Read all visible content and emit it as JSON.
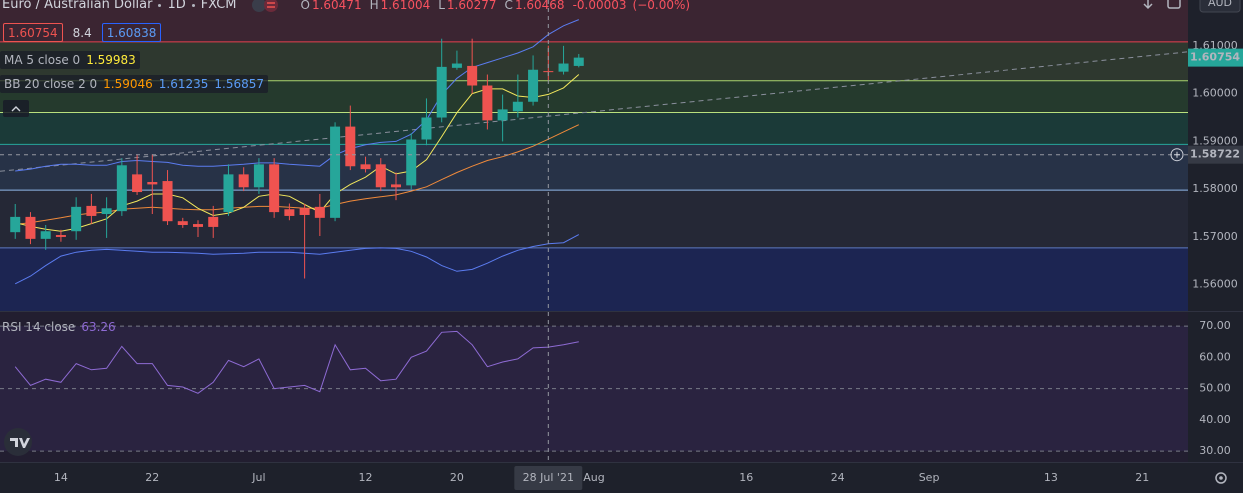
{
  "header": {
    "symbol": "Euro / Australian Dollar",
    "interval": "1D",
    "exchange": "FXCM",
    "ohlc_labels": [
      "O",
      "H",
      "L",
      "C"
    ],
    "change": -3e-05,
    "change_percent": {
      "value": 0,
      "label": "(−0.00%)"
    },
    "quote": {
      "bid": 1.60754,
      "spread": 8.4,
      "ask": 1.60838
    },
    "currency": "AUD"
  },
  "chart_data": [
    {
      "type": "candlestick",
      "up_color": "#26a69a",
      "down_color": "#ef5350",
      "x": [
        "2021-06-09",
        "2021-06-10",
        "2021-06-11",
        "2021-06-14",
        "2021-06-15",
        "2021-06-16",
        "2021-06-17",
        "2021-06-18",
        "2021-06-21",
        "2021-06-22",
        "2021-06-23",
        "2021-06-24",
        "2021-06-25",
        "2021-06-28",
        "2021-06-29",
        "2021-06-30",
        "2021-07-01",
        "2021-07-02",
        "2021-07-05",
        "2021-07-06",
        "2021-07-07",
        "2021-07-08",
        "2021-07-09",
        "2021-07-12",
        "2021-07-13",
        "2021-07-14",
        "2021-07-15",
        "2021-07-16",
        "2021-07-19",
        "2021-07-20",
        "2021-07-21",
        "2021-07-22",
        "2021-07-23",
        "2021-07-26",
        "2021-07-27",
        "2021-07-28",
        "2021-07-29",
        "2021-07-30"
      ],
      "open": [
        1.571,
        1.5742,
        1.5696,
        1.5704,
        1.5712,
        1.5765,
        1.5748,
        1.5754,
        1.5831,
        1.5815,
        1.5817,
        1.5733,
        1.5727,
        1.5742,
        1.5752,
        1.5831,
        1.5804,
        1.5852,
        1.5758,
        1.576,
        1.5763,
        1.574,
        1.5931,
        1.5852,
        1.5852,
        1.581,
        1.5808,
        1.5904,
        1.595,
        1.6054,
        1.6058,
        1.6017,
        1.5944,
        1.5963,
        1.5983,
        1.60471,
        1.6046,
        1.6058
      ],
      "high": [
        1.5769,
        1.5752,
        1.5725,
        1.5715,
        1.5783,
        1.579,
        1.5783,
        1.5865,
        1.5873,
        1.5873,
        1.584,
        1.574,
        1.5735,
        1.5765,
        1.5852,
        1.5846,
        1.5865,
        1.5865,
        1.577,
        1.5769,
        1.579,
        1.594,
        1.5975,
        1.5868,
        1.5865,
        1.5835,
        1.5917,
        1.599,
        1.6115,
        1.609,
        1.6115,
        1.604,
        1.5998,
        1.604,
        1.608,
        1.61004,
        1.61,
        1.6083
      ],
      "low": [
        1.5696,
        1.5685,
        1.5673,
        1.569,
        1.5694,
        1.5727,
        1.5698,
        1.5744,
        1.5788,
        1.5748,
        1.5725,
        1.5719,
        1.57,
        1.5698,
        1.5744,
        1.5796,
        1.579,
        1.574,
        1.5735,
        1.5613,
        1.5702,
        1.5733,
        1.584,
        1.5835,
        1.5796,
        1.5777,
        1.58,
        1.5892,
        1.594,
        1.605,
        1.6,
        1.5925,
        1.59,
        1.595,
        1.5975,
        1.60277,
        1.604,
        1.6055
      ],
      "close": [
        1.5742,
        1.5696,
        1.5712,
        1.57,
        1.5763,
        1.5744,
        1.576,
        1.585,
        1.5794,
        1.581,
        1.5733,
        1.5725,
        1.5721,
        1.5721,
        1.5831,
        1.5804,
        1.5852,
        1.5752,
        1.5744,
        1.5746,
        1.574,
        1.5931,
        1.5848,
        1.5842,
        1.5804,
        1.5804,
        1.5904,
        1.595,
        1.6056,
        1.6063,
        1.6017,
        1.5944,
        1.5967,
        1.5983,
        1.605,
        1.60468,
        1.6063,
        1.60754
      ],
      "series": [
        {
          "name": "MA 5 close 0",
          "color": "#f2e75c",
          "values": [
            1.573,
            1.5722,
            1.5716,
            1.5712,
            1.5718,
            1.5728,
            1.5738,
            1.5765,
            1.5775,
            1.579,
            1.579,
            1.5782,
            1.576,
            1.5745,
            1.575,
            1.5762,
            1.5785,
            1.579,
            1.5785,
            1.5768,
            1.5752,
            1.579,
            1.581,
            1.5825,
            1.5848,
            1.5832,
            1.5838,
            1.5862,
            1.591,
            1.596,
            1.6,
            1.601,
            1.601,
            1.5995,
            1.5992,
            1.59983,
            1.6012,
            1.604
          ]
        }
      ],
      "bands": {
        "name": "BB 20 close 2 0",
        "basis": {
          "color": "#f08a3b",
          "values": [
            1.5726,
            1.573,
            1.5735,
            1.574,
            1.5746,
            1.575,
            1.5752,
            1.5758,
            1.576,
            1.5762,
            1.576,
            1.5758,
            1.5757,
            1.5757,
            1.576,
            1.5762,
            1.5764,
            1.5764,
            1.5762,
            1.576,
            1.576,
            1.5768,
            1.5775,
            1.578,
            1.5784,
            1.5788,
            1.5796,
            1.5805,
            1.582,
            1.5835,
            1.5848,
            1.586,
            1.5868,
            1.5878,
            1.589,
            1.59046,
            1.592,
            1.5935
          ]
        },
        "upper": {
          "color": "#5b7cf0",
          "values": [
            1.5838,
            1.5842,
            1.5848,
            1.5852,
            1.5852,
            1.585,
            1.585,
            1.5858,
            1.586,
            1.5858,
            1.5856,
            1.585,
            1.5848,
            1.5848,
            1.585,
            1.5852,
            1.5855,
            1.5855,
            1.5852,
            1.585,
            1.5848,
            1.5872,
            1.5885,
            1.5893,
            1.5898,
            1.59,
            1.5915,
            1.5945,
            1.5998,
            1.6032,
            1.6055,
            1.6065,
            1.6075,
            1.6085,
            1.6098,
            1.61235,
            1.6142,
            1.6155
          ]
        },
        "lower": {
          "color": "#5b7cf0",
          "values": [
            1.5602,
            1.5618,
            1.564,
            1.566,
            1.5668,
            1.5672,
            1.5674,
            1.5672,
            1.567,
            1.5668,
            1.5668,
            1.5667,
            1.5666,
            1.5664,
            1.5665,
            1.5666,
            1.5668,
            1.5668,
            1.5668,
            1.5666,
            1.5664,
            1.5668,
            1.5672,
            1.5676,
            1.5677,
            1.5676,
            1.567,
            1.5658,
            1.564,
            1.5628,
            1.5632,
            1.5645,
            1.566,
            1.5672,
            1.568,
            1.56857,
            1.5688,
            1.5705
          ]
        }
      },
      "levels": [
        {
          "value": 1.61083,
          "color": "#e5414f"
        },
        {
          "value": 1.60271,
          "color": "#a8d46f"
        },
        {
          "value": 1.59604,
          "color": "#b9e07d"
        },
        {
          "value": 1.58938,
          "color": "#26a69a"
        },
        {
          "value": 1.57979,
          "color": "#90b8ea"
        },
        {
          "value": 1.56771,
          "color": "#5d7ac2"
        }
      ],
      "background_zones": [
        "#3b2532",
        "#2e382f",
        "#253a2d",
        "#1b3a38",
        "#273247",
        "#252836",
        "#1c2552"
      ],
      "trendline": {
        "from": {
          "x": "2021-06-08",
          "y": 1.58375
        },
        "to": {
          "x": "2021-09-24",
          "y": 1.60875
        }
      },
      "crosshair": {
        "x": "2021-07-28",
        "x_label": "28 Jul '21",
        "y": 1.58722
      },
      "xlim": [
        "2021-06-08",
        "2021-09-24"
      ],
      "xticks": [
        {
          "value": "2021-06-14",
          "label": "14"
        },
        {
          "value": "2021-06-22",
          "label": "22"
        },
        {
          "value": "2021-07-01",
          "label": "Jul"
        },
        {
          "value": "2021-07-12",
          "label": "12"
        },
        {
          "value": "2021-07-20",
          "label": "20"
        },
        {
          "value": "2021-08-02",
          "label": "Aug"
        },
        {
          "value": "2021-08-16",
          "label": "16"
        },
        {
          "value": "2021-08-24",
          "label": "24"
        },
        {
          "value": "2021-09-01",
          "label": "Sep"
        },
        {
          "value": "2021-09-13",
          "label": "13"
        },
        {
          "value": "2021-09-21",
          "label": "21"
        }
      ],
      "ylim": [
        1.5545,
        1.6196
      ],
      "yticks": [
        {
          "value": 1.61,
          "label": "1.61000"
        },
        {
          "value": 1.6,
          "label": "1.60000"
        },
        {
          "value": 1.59,
          "label": "1.59000"
        },
        {
          "value": 1.58,
          "label": "1.58000"
        },
        {
          "value": 1.57,
          "label": "1.57000"
        },
        {
          "value": 1.56,
          "label": "1.56000"
        }
      ]
    },
    {
      "type": "line",
      "name": "RSI 14 close",
      "color": "#8e6bd4",
      "values": [
        57,
        51,
        53,
        52,
        58,
        56,
        56.5,
        63.5,
        58,
        58,
        51,
        50.5,
        48.5,
        52,
        59,
        57,
        59.5,
        50,
        50.5,
        51,
        49,
        64,
        56,
        56.5,
        52.5,
        53,
        60,
        62,
        68,
        68.3,
        64,
        57,
        58.5,
        59.5,
        63,
        63.26,
        64,
        65
      ],
      "levels": [
        70,
        50,
        30
      ],
      "ylim": [
        26.5,
        74.5
      ],
      "yticks": [
        {
          "value": 70,
          "label": "70.00"
        },
        {
          "value": 60,
          "label": "60.00"
        },
        {
          "value": 50,
          "label": "50.00"
        },
        {
          "value": 40,
          "label": "40.00"
        },
        {
          "value": 30,
          "label": "30.00"
        }
      ]
    }
  ]
}
